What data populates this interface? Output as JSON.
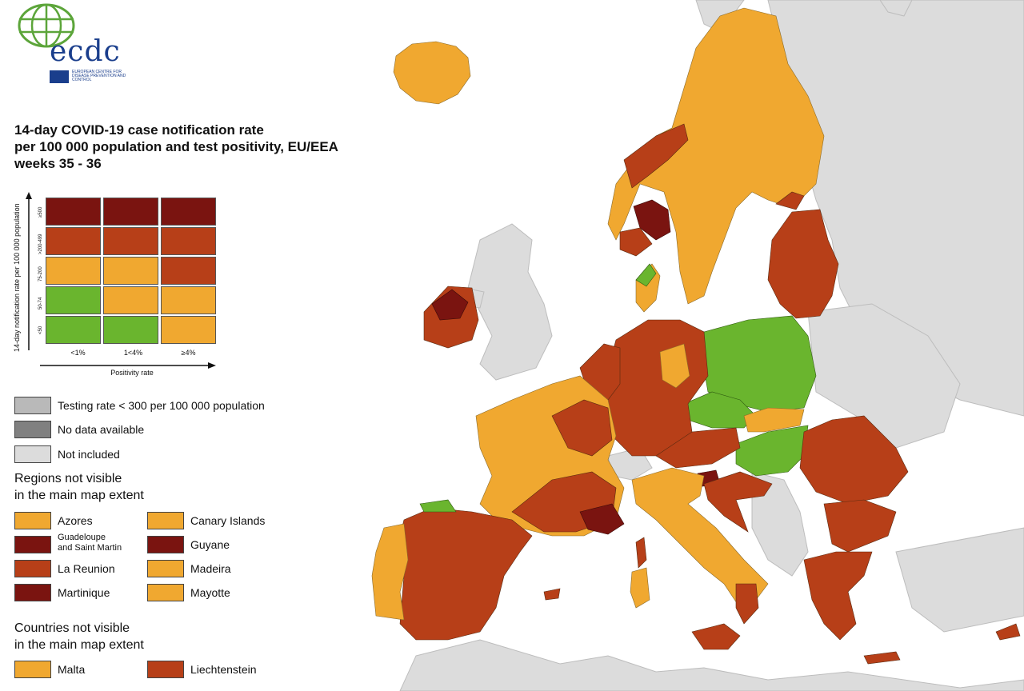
{
  "title": {
    "line1": "14-day COVID-19 case notification rate",
    "line2": "per 100 000 population and test positivity, EU/EEA",
    "line3": "weeks 35 - 36"
  },
  "logo": {
    "wordmark": "ecdc",
    "subtitle": "EUROPEAN CENTRE FOR DISEASE PREVENTION AND CONTROL"
  },
  "colors": {
    "sea": "#ffffff",
    "not_included": "#dcdcdc",
    "green": "#6ab52e",
    "orange": "#f0a830",
    "red": "#b73f18",
    "darkred": "#7a1410",
    "low_testing": "#b9b9b9",
    "no_data": "#808080"
  },
  "matrix": {
    "y_axis_title": "14-day notification rate per 100 000 population",
    "x_axis_title": "Positivity rate",
    "x_ticks": [
      "<1%",
      "1<4%",
      "≥4%"
    ],
    "y_ticks": [
      "≥500",
      ">200-499",
      "75-200",
      "50-74",
      "<50"
    ],
    "grid": [
      [
        "darkred",
        "darkred",
        "darkred"
      ],
      [
        "red",
        "red",
        "red"
      ],
      [
        "orange",
        "orange",
        "red"
      ],
      [
        "green",
        "orange",
        "orange"
      ],
      [
        "green",
        "green",
        "orange"
      ]
    ]
  },
  "legend": {
    "testing_rate": "Testing rate < 300 per 100 000 population",
    "no_data": "No data available",
    "not_included": "Not included"
  },
  "regions_not_visible": {
    "heading_line1": "Regions not visible",
    "heading_line2": "in the main map extent",
    "items": [
      {
        "label": "Azores",
        "color": "orange"
      },
      {
        "label": "Canary Islands",
        "color": "orange"
      },
      {
        "label": "Guadeloupe\nand Saint Martin",
        "color": "darkred"
      },
      {
        "label": "Guyane",
        "color": "darkred"
      },
      {
        "label": "La Reunion",
        "color": "red"
      },
      {
        "label": "Madeira",
        "color": "orange"
      },
      {
        "label": "Martinique",
        "color": "darkred"
      },
      {
        "label": "Mayotte",
        "color": "orange"
      }
    ]
  },
  "countries_not_visible": {
    "heading_line1": "Countries not visible",
    "heading_line2": "in the main map extent",
    "items": [
      {
        "label": "Malta",
        "color": "orange"
      },
      {
        "label": "Liechtenstein",
        "color": "red"
      }
    ]
  }
}
